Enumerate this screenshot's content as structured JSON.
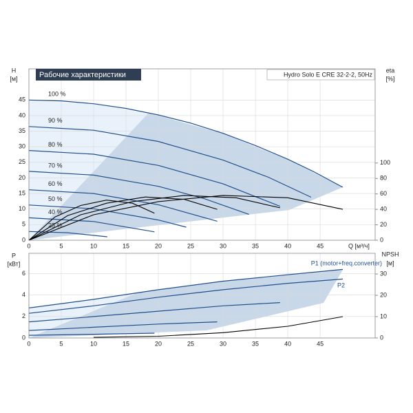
{
  "chart_data": [
    {
      "type": "line",
      "title": "Рабочие характеристики",
      "subtitle": "Hydro Solo E CRE 32-2-2, 50Hz",
      "x_label": "Q [м³/ч]",
      "y_label": "H",
      "y_unit": "[м]",
      "y2_label": "eta",
      "y2_unit": "[%]",
      "xlim": [
        0,
        53.5
      ],
      "xticks": [
        0,
        5,
        10,
        15,
        20,
        25,
        30,
        35,
        40,
        45
      ],
      "ylim": [
        0,
        55
      ],
      "yticks": [
        0,
        5,
        10,
        15,
        20,
        25,
        30,
        35,
        40,
        45
      ],
      "y2lim": [
        0,
        222
      ],
      "y2ticks": [
        0,
        20,
        40,
        60,
        80,
        100
      ],
      "grid": true,
      "series": [
        {
          "name": "100 %",
          "color": "#1f4e8c",
          "x": [
            0,
            5,
            10,
            15,
            20,
            25,
            30,
            35,
            40,
            44,
            48.5
          ],
          "values": [
            45,
            44.7,
            43.8,
            42.3,
            40.2,
            37.6,
            34.3,
            30.4,
            26.0,
            22.0,
            17.0
          ]
        },
        {
          "name": "90 %",
          "color": "#1f4e8c",
          "x": [
            0,
            10,
            20,
            30,
            37,
            43.6
          ],
          "values": [
            36.5,
            35.3,
            31.7,
            25.7,
            20.2,
            13.8
          ]
        },
        {
          "name": "80 %",
          "color": "#1f4e8c",
          "x": [
            0,
            10,
            20,
            30,
            38.8
          ],
          "values": [
            28.8,
            27.6,
            24.0,
            18.1,
            10.9
          ]
        },
        {
          "name": "70 %",
          "color": "#1f4e8c",
          "x": [
            0,
            10,
            20,
            27,
            34
          ],
          "values": [
            22.1,
            20.9,
            17.3,
            13.4,
            8.3
          ]
        },
        {
          "name": "60 %",
          "color": "#1f4e8c",
          "x": [
            0,
            10,
            20,
            29.1
          ],
          "values": [
            16.2,
            15.0,
            11.4,
            6.1
          ]
        },
        {
          "name": "50 %",
          "color": "#1f4e8c",
          "x": [
            0,
            10,
            20,
            24.3
          ],
          "values": [
            11.3,
            10.1,
            6.5,
            4.2
          ]
        },
        {
          "name": "40 %",
          "color": "#1f4e8c",
          "x": [
            0,
            10,
            19.4
          ],
          "values": [
            7.2,
            6.0,
            2.7
          ]
        },
        {
          "name": "25 %",
          "color": "#1f4e8c",
          "x": [
            0,
            6,
            12.1
          ],
          "values": [
            2.8,
            2.4,
            1.1
          ]
        },
        {
          "color": "#000000",
          "axis": "y2",
          "x": [
            0,
            10,
            20,
            30,
            40,
            48.5
          ],
          "values": [
            0,
            33,
            50,
            58,
            55,
            40
          ]
        },
        {
          "color": "#000000",
          "axis": "y2",
          "x": [
            0,
            8,
            16,
            24,
            32,
            38.8
          ],
          "values": [
            0,
            33,
            50,
            58,
            55,
            42
          ]
        },
        {
          "color": "#000000",
          "axis": "y2",
          "x": [
            0,
            6,
            12,
            18,
            24,
            29.1
          ],
          "values": [
            0,
            32,
            48,
            56,
            53,
            40
          ]
        },
        {
          "color": "#000000",
          "axis": "y2",
          "x": [
            0,
            4,
            8,
            12,
            16,
            19.4
          ],
          "values": [
            0,
            30,
            45,
            52,
            48,
            35
          ]
        }
      ]
    },
    {
      "type": "line",
      "y_label": "P",
      "y_unit": "[кВт]",
      "y2_label": "NPSH",
      "y2_unit": "[м]",
      "xlim": [
        0,
        53.5
      ],
      "xticks": [
        0,
        5,
        10,
        15,
        20,
        25,
        30,
        35,
        40,
        45
      ],
      "ylim": [
        0,
        7.9
      ],
      "yticks": [
        0,
        2,
        4,
        6
      ],
      "y2lim": [
        0,
        39.7
      ],
      "y2ticks": [
        0,
        10,
        20,
        30
      ],
      "grid": true,
      "series": [
        {
          "name": "P1 (motor+freq.converter)",
          "color": "#1f4e8c",
          "x": [
            0,
            10,
            20,
            30,
            40,
            48.5
          ],
          "values": [
            2.8,
            3.6,
            4.5,
            5.3,
            5.9,
            6.4
          ]
        },
        {
          "name": "P2",
          "color": "#1f4e8c",
          "x": [
            0,
            10,
            20,
            30,
            40,
            48.5
          ],
          "values": [
            2.3,
            3.0,
            3.8,
            4.5,
            5.1,
            5.5
          ]
        },
        {
          "color": "#1f4e8c",
          "x": [
            0,
            10,
            20,
            30,
            38.8
          ],
          "values": [
            1.5,
            2.0,
            2.5,
            3.0,
            3.3
          ]
        },
        {
          "color": "#1f4e8c",
          "x": [
            0,
            10,
            20,
            29.1
          ],
          "values": [
            0.7,
            1.0,
            1.3,
            1.5
          ]
        },
        {
          "color": "#1f4e8c",
          "x": [
            0,
            10,
            19.4
          ],
          "values": [
            0.25,
            0.35,
            0.45
          ]
        },
        {
          "color": "#000000",
          "axis": "y2",
          "x": [
            10,
            20,
            30,
            40,
            48.5
          ],
          "values": [
            0.3,
            0.8,
            2.5,
            5.5,
            10
          ]
        }
      ]
    }
  ]
}
